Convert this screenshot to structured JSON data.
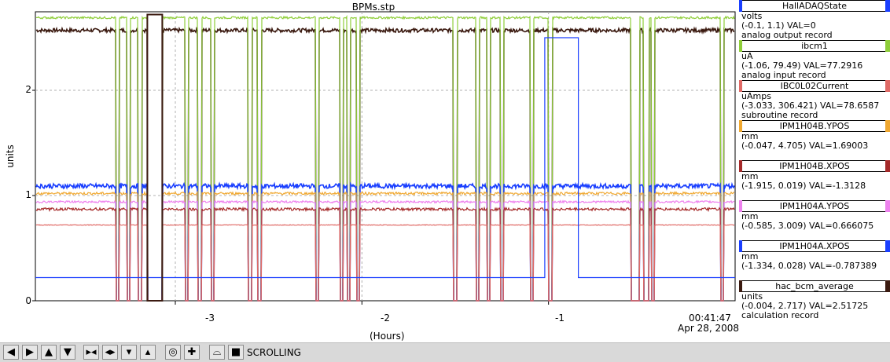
{
  "window": {
    "title": "BPMs.stp"
  },
  "axes": {
    "ylabel": "units",
    "xlabel": "(Hours)",
    "yticks": [
      "2",
      "1",
      "0"
    ],
    "xticks": [
      "-3",
      "-2",
      "-1"
    ],
    "time_now": "00:41:47",
    "time_date": "Apr 28, 2008"
  },
  "legend": [
    {
      "name": "HallADAQState",
      "units": "volts",
      "range_val": "(-0.1, 1.1) VAL=0",
      "record": "analog output record",
      "color": "#1a3fff"
    },
    {
      "name": "ibcm1",
      "units": "uA",
      "range_val": "(-1.06, 79.49) VAL=77.2916",
      "record": "analog input record",
      "color": "#8fce3a"
    },
    {
      "name": "IBC0L02Current",
      "units": "uAmps",
      "range_val": "(-3.033, 306.421) VAL=78.6587",
      "record": "subroutine record",
      "color": "#e06a66"
    },
    {
      "name": "IPM1H04B.YPOS",
      "units": "mm",
      "range_val": "(-0.047, 4.705) VAL=1.69003",
      "record": "",
      "color": "#f0a830"
    },
    {
      "name": "IPM1H04B.XPOS",
      "units": "mm",
      "range_val": "(-1.915, 0.019) VAL=-1.3128",
      "record": "",
      "color": "#a52a2a"
    },
    {
      "name": "IPM1H04A.YPOS",
      "units": "mm",
      "range_val": "(-0.585, 3.009) VAL=0.666075",
      "record": "",
      "color": "#ee82ee"
    },
    {
      "name": "IPM1H04A.XPOS",
      "units": "mm",
      "range_val": "(-1.334, 0.028) VAL=-0.787389",
      "record": "",
      "color": "#1a3fff"
    },
    {
      "name": "hac_bcm_average",
      "units": "units",
      "range_val": "(-0.004, 2.717) VAL=2.51725",
      "record": "calculation record",
      "color": "#3b1a10"
    }
  ],
  "toolbar": {
    "status": "SCROLLING",
    "buttons": [
      {
        "name": "pan-left",
        "glyph": "◀"
      },
      {
        "name": "pan-right",
        "glyph": "▶"
      },
      {
        "name": "pan-up",
        "glyph": "▲"
      },
      {
        "name": "pan-down",
        "glyph": "▼"
      },
      {
        "name": "zoom-in-x",
        "glyph": "▸◂"
      },
      {
        "name": "zoom-out-x",
        "glyph": "◂▸"
      },
      {
        "name": "zoom-in-y",
        "glyph": "▾"
      },
      {
        "name": "zoom-out-y",
        "glyph": "▴"
      },
      {
        "name": "autoscale",
        "glyph": "◎"
      },
      {
        "name": "add",
        "glyph": "✚"
      },
      {
        "name": "reset",
        "glyph": "⌓"
      },
      {
        "name": "scroll-mode",
        "glyph": "■"
      }
    ]
  },
  "chart_data": {
    "type": "line",
    "xlim": [
      -3.75,
      0
    ],
    "ylim": [
      0,
      2.8
    ],
    "grid": true,
    "legend_position": "right",
    "series": [
      {
        "name": "hac_bcm_average",
        "level": 2.57,
        "noise": 0.018,
        "color": "#3b1a10"
      },
      {
        "name": "ibcm1",
        "level": 2.69,
        "noise": 0.01,
        "color": "#8fce3a"
      },
      {
        "name": "IPM1H04A.XPOS",
        "level": 1.09,
        "noise": 0.022,
        "color": "#1a3fff"
      },
      {
        "name": "IPM1H04B.YPOS",
        "level": 1.02,
        "noise": 0.012,
        "color": "#f0a830"
      },
      {
        "name": "IPM1H04A.YPOS",
        "level": 0.94,
        "noise": 0.01,
        "color": "#ee82ee"
      },
      {
        "name": "IPM1H04B.XPOS",
        "level": 0.87,
        "noise": 0.013,
        "color": "#a52a2a"
      },
      {
        "name": "IBC0L02Current",
        "level": 0.72,
        "noise": 0.003,
        "color": "#e06a66"
      },
      {
        "name": "HallADAQState",
        "level": 0.22,
        "noise": 0.0,
        "color": "#1a3fff"
      }
    ],
    "dropouts_hours": [
      -3.31,
      -3.25,
      -3.19,
      -2.94,
      -2.87,
      -2.8,
      -2.6,
      -2.55,
      -2.24,
      -2.11,
      -2.07,
      -2.02,
      -1.5,
      -1.38,
      -1.32,
      -1.25,
      -1.09,
      -0.99,
      -0.55,
      -0.54,
      -0.52,
      -0.48,
      -0.47,
      -0.44,
      -0.07
    ],
    "dropout_box_hours": [
      -3.15,
      -3.07
    ],
    "daq_step_hours": [
      -1.02,
      -0.84
    ],
    "daq_step_level": 2.5
  }
}
